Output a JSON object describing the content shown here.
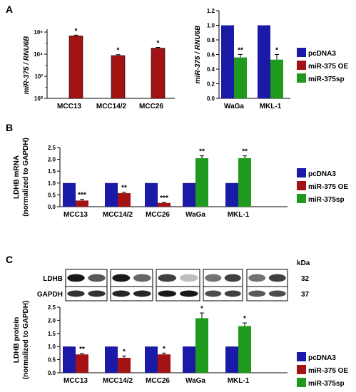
{
  "panels": {
    "a": "A",
    "b": "B",
    "c": "C"
  },
  "colors": {
    "pcDNA3": "#1a1aa6",
    "oe": "#a31313",
    "sp": "#1f9a1f",
    "axis": "#000000"
  },
  "legend": [
    {
      "key": "pcDNA3",
      "label": "pcDNA3"
    },
    {
      "key": "oe",
      "label": "miR-375 OE"
    },
    {
      "key": "sp",
      "label": "miR-375sp"
    }
  ],
  "chart_data": [
    {
      "id": "A-left",
      "type": "bar",
      "ylabel": "miR-375 / RNU6B",
      "yscale": "log",
      "yticks": [
        "10⁰",
        "10²",
        "10⁴",
        "10⁶"
      ],
      "ylim": [
        1,
        1000000
      ],
      "categories": [
        "MCC13",
        "MCC14/2",
        "MCC26"
      ],
      "series": [
        {
          "key": "pcDNA3",
          "values": [
            1,
            1,
            1
          ]
        },
        {
          "key": "oe",
          "values": [
            450000,
            7500,
            35000
          ],
          "errors": [
            80000,
            1500,
            6000
          ],
          "sig": [
            "*",
            "*",
            "*"
          ]
        }
      ]
    },
    {
      "id": "A-right",
      "type": "bar",
      "ylabel": "miR-375 / RNU6B",
      "ylim": [
        0,
        1.2
      ],
      "yticks": [
        "0.0",
        "0.2",
        "0.4",
        "0.6",
        "0.8",
        "1.0",
        "1.2"
      ],
      "categories": [
        "WaGa",
        "MKL-1"
      ],
      "series": [
        {
          "key": "pcDNA3",
          "values": [
            1.0,
            1.0
          ]
        },
        {
          "key": "sp",
          "values": [
            0.56,
            0.53
          ],
          "errors": [
            0.04,
            0.07
          ],
          "sig": [
            "**",
            "*"
          ]
        }
      ]
    },
    {
      "id": "B",
      "type": "bar",
      "ylabel_lines": [
        "LDHB mRNA",
        "(normalized to GAPDH)"
      ],
      "ylim": [
        0,
        2.5
      ],
      "yticks": [
        "0.0",
        "0.5",
        "1.0",
        "1.5",
        "2.0",
        "2.5"
      ],
      "groups": [
        {
          "label": "MCC13",
          "bars": [
            {
              "key": "pcDNA3",
              "value": 1.0
            },
            {
              "key": "oe",
              "value": 0.26,
              "error": 0.05,
              "sig": "***"
            }
          ]
        },
        {
          "label": "MCC14/2",
          "bars": [
            {
              "key": "pcDNA3",
              "value": 1.0
            },
            {
              "key": "oe",
              "value": 0.57,
              "error": 0.04,
              "sig": "**"
            }
          ]
        },
        {
          "label": "MCC26",
          "bars": [
            {
              "key": "pcDNA3",
              "value": 1.0
            },
            {
              "key": "oe",
              "value": 0.16,
              "error": 0.02,
              "sig": "***"
            }
          ]
        },
        {
          "label": "WaGa",
          "bars": [
            {
              "key": "pcDNA3",
              "value": 1.0
            },
            {
              "key": "sp",
              "value": 2.05,
              "error": 0.1,
              "sig": "**"
            }
          ]
        },
        {
          "label": "MKL-1",
          "bars": [
            {
              "key": "pcDNA3",
              "value": 1.0
            },
            {
              "key": "sp",
              "value": 2.05,
              "error": 0.1,
              "sig": "**"
            }
          ]
        }
      ]
    },
    {
      "id": "C",
      "type": "bar",
      "ylabel_lines": [
        "LDHB protein",
        "(normalized to GAPDH)"
      ],
      "ylim": [
        0,
        2.5
      ],
      "yticks": [
        "0.0",
        "0.5",
        "1.0",
        "1.5",
        "2.0",
        "2.5"
      ],
      "groups": [
        {
          "label": "MCC13",
          "bars": [
            {
              "key": "pcDNA3",
              "value": 1.0
            },
            {
              "key": "oe",
              "value": 0.7,
              "error": 0.03,
              "sig": "**"
            }
          ]
        },
        {
          "label": "MCC14/2",
          "bars": [
            {
              "key": "pcDNA3",
              "value": 1.0
            },
            {
              "key": "oe",
              "value": 0.57,
              "error": 0.07,
              "sig": "*"
            }
          ]
        },
        {
          "label": "MCC26",
          "bars": [
            {
              "key": "pcDNA3",
              "value": 1.0
            },
            {
              "key": "oe",
              "value": 0.7,
              "error": 0.05,
              "sig": "*"
            }
          ]
        },
        {
          "label": "WaGa",
          "bars": [
            {
              "key": "pcDNA3",
              "value": 1.0
            },
            {
              "key": "sp",
              "value": 2.08,
              "error": 0.2,
              "sig": "*"
            }
          ]
        },
        {
          "label": "MKL-1",
          "bars": [
            {
              "key": "pcDNA3",
              "value": 1.0
            },
            {
              "key": "sp",
              "value": 1.78,
              "error": 0.12,
              "sig": "*"
            }
          ]
        }
      ]
    }
  ],
  "blot": {
    "kda_label": "kDa",
    "rows": [
      {
        "label": "LDHB",
        "kda": "32",
        "intensity": [
          0.9,
          0.65,
          0.9,
          0.6,
          0.75,
          0.25,
          0.55,
          0.75,
          0.55,
          0.75
        ]
      },
      {
        "label": "GAPDH",
        "kda": "37",
        "intensity": [
          0.8,
          0.8,
          0.85,
          0.85,
          0.9,
          0.9,
          0.7,
          0.75,
          0.65,
          0.7
        ]
      }
    ]
  }
}
